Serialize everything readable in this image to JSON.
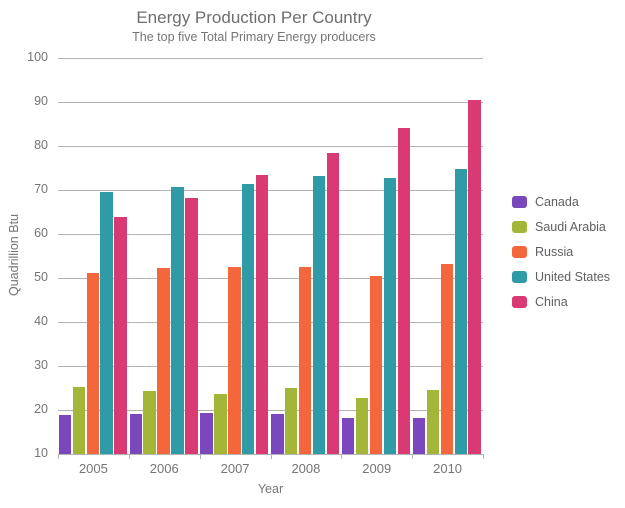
{
  "chart_data": {
    "type": "bar",
    "title": "Energy Production Per Country",
    "subtitle": "The top five Total Primary Energy producers",
    "xlabel": "Year",
    "ylabel": "Quadrillion Btu",
    "ylim": [
      10,
      100
    ],
    "ytick_step": 10,
    "grid": true,
    "legend_position": "right",
    "categories": [
      "2005",
      "2006",
      "2007",
      "2008",
      "2009",
      "2010"
    ],
    "series": [
      {
        "name": "Canada",
        "color": "#7a48bc",
        "values": [
          18.8,
          19.2,
          19.4,
          19.0,
          18.1,
          18.2
        ]
      },
      {
        "name": "Saudi Arabia",
        "color": "#a3b637",
        "values": [
          25.2,
          24.4,
          23.6,
          25.0,
          22.7,
          24.5
        ]
      },
      {
        "name": "Russia",
        "color": "#f4663c",
        "values": [
          51.1,
          52.2,
          52.5,
          52.5,
          50.5,
          53.2
        ]
      },
      {
        "name": "United States",
        "color": "#2e9ba6",
        "values": [
          69.5,
          70.7,
          71.3,
          73.2,
          72.7,
          74.8
        ]
      },
      {
        "name": "China",
        "color": "#d93a73",
        "values": [
          63.9,
          68.2,
          73.3,
          78.4,
          84.0,
          90.4
        ]
      }
    ],
    "axis_text_color": "#757575",
    "grid_color": "#b3b3b3"
  }
}
